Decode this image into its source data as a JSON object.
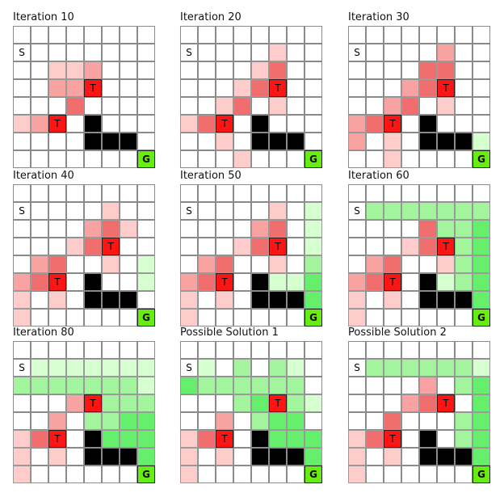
{
  "grid_size": 8,
  "legend_colors": {
    "empty": "#ffffff",
    "wall": "#000000",
    "trap": "#ff1414",
    "goal": "#66ee11",
    "red_light": "#ffcccc",
    "red_mid": "#f8a2a2",
    "red_strong": "#f06e6e",
    "green_light": "#d6ffd0",
    "green_mid": "#a2f59c",
    "green_strong": "#66ef6c"
  },
  "symbols": {
    "start": "S",
    "trap": "T",
    "goal": "G"
  },
  "panels": [
    {
      "title": "Iteration 10",
      "cells": [
        "........",
        "S.......",
        "..aab...",
        "..bbT...",
        "...c....",
        "abT.W...",
        "....WWW.",
        ".......G"
      ]
    },
    {
      "title": "Iteration 20",
      "cells": [
        "........",
        "S....a..",
        "....ac..",
        "...acT..",
        "..ac.a..",
        "acT.W...",
        "..a.WWW.",
        "...a...G"
      ]
    },
    {
      "title": "Iteration 30",
      "cells": [
        "........",
        "S....b..",
        "....cc..",
        "...bcT..",
        "..bc.a..",
        "bcT.W...",
        "b.a.WWWx",
        "..a....G"
      ]
    },
    {
      "title": "Iteration 40",
      "cells": [
        "........",
        "S....a..",
        "....bca.",
        "...acT..",
        ".bc..a.x",
        "bcT.W..x",
        "a.a.WWW.",
        "a......G"
      ]
    },
    {
      "title": "Iteration 50",
      "cells": [
        "........",
        "S....a.x",
        "....bc.x",
        "...acT.x",
        ".bc..a.y",
        "bcT.Wxxz",
        "a.a.WWWz",
        "a......G"
      ]
    },
    {
      "title": "Iteration 60",
      "cells": [
        "........",
        "Syyyyyyy",
        "....cyyz",
        "...acTyz",
        ".bc..ayz",
        "bcT.Wxyz",
        "a.a.WWWz",
        "a......G"
      ]
    },
    {
      "title": "Iteration 80",
      "cells": [
        "........",
        "Sxxxxxxx",
        "yyyyyyyx",
        "...bTyyy",
        "..b.yyzz",
        "acT.Wzzz",
        "a.a.WWWz",
        "a......G"
      ]
    },
    {
      "title": "Possible Solution 1",
      "cells": [
        "........",
        "Sx.y.yx.",
        "zyyyyyy.",
        "...yzTyx",
        "..b.yzz.",
        "acT.Wzzz",
        "a.a.WWWz",
        "a......G"
      ]
    },
    {
      "title": "Possible Solution 2",
      "cells": [
        "........",
        "Syyyyyyx",
        "....b.yz",
        "...bcT.z",
        "..c...yz",
        "acT.W.yz",
        "a.a.WWWz",
        "a......G"
      ]
    }
  ]
}
